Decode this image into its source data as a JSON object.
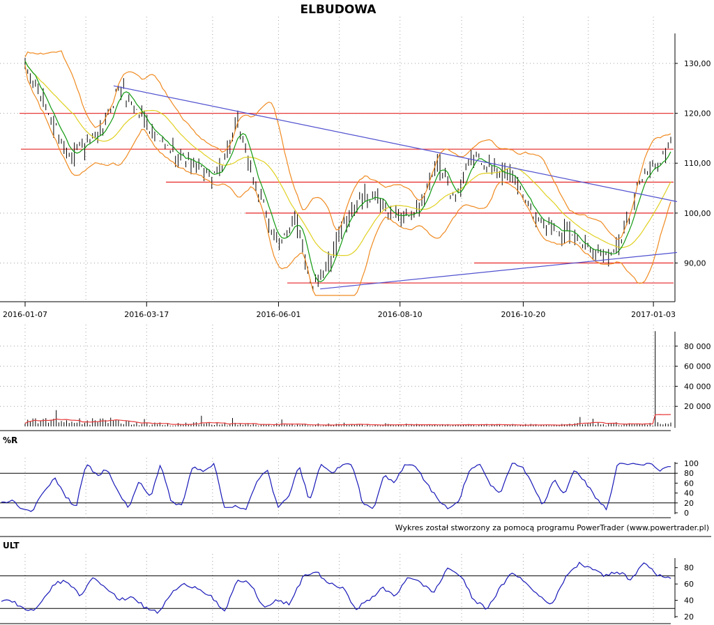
{
  "colors": {
    "background": "#ffffff",
    "candles": "#000000",
    "bollinger": "#f08a20",
    "sma_fast": "#109a10",
    "sma_slow": "#e0d020",
    "support_resistance": "#e83838",
    "trendline": "#5050d0",
    "volume_avg": "#e83838",
    "oscillator": "#1818b8",
    "grid": "#a0a0a0"
  },
  "chart_data": [
    {
      "type": "candlestick",
      "title": "ELBUDOWA",
      "x_tick_labels": [
        "2016-01-07",
        "2016-03-17",
        "2016-06-01",
        "2016-08-10",
        "2016-10-20",
        "2017-01-03"
      ],
      "y_tick_labels": [
        "90,00",
        "100,00",
        "110,00",
        "120,00",
        "130,00"
      ],
      "ylim": [
        83.5,
        136
      ],
      "y_scale": "linear",
      "grid": "dotted",
      "close_anchors": {
        "x": [
          "2016-01-07",
          "2016-02-01",
          "2016-02-20",
          "2016-03-01",
          "2016-03-25",
          "2016-04-12",
          "2016-04-25",
          "2016-05-09",
          "2016-05-20",
          "2016-06-01",
          "2016-06-10",
          "2016-06-20",
          "2016-06-30",
          "2016-07-12",
          "2016-07-25",
          "2016-08-05",
          "2016-08-20",
          "2016-09-01",
          "2016-09-10",
          "2016-09-22",
          "2016-10-03",
          "2016-10-14",
          "2016-10-26",
          "2016-11-10",
          "2016-11-25",
          "2016-12-10",
          "2016-12-19",
          "2016-12-25",
          "2017-01-05",
          "2017-01-13"
        ],
        "close": [
          129.5,
          112,
          115.5,
          125.5,
          114,
          110,
          107,
          117,
          104.5,
          93,
          99.5,
          85.5,
          89.5,
          101,
          103.5,
          99.5,
          100,
          110,
          103,
          111.5,
          109,
          107,
          99.5,
          97,
          93.5,
          91.5,
          98,
          106,
          110,
          113.5
        ]
      },
      "overlays": [
        "Bollinger bands",
        "moving average (short)",
        "moving average (long)"
      ],
      "horizontal_lines": [
        120,
        112.8,
        106.2,
        100,
        90,
        86
      ],
      "trendlines": [
        {
          "from": [
            "2016-02-27",
            125.5
          ],
          "to": [
            "2017-01-15",
            102.3
          ]
        },
        {
          "from": [
            "2016-06-25",
            84.8
          ],
          "to": [
            "2017-01-15",
            92.1
          ]
        }
      ]
    },
    {
      "type": "bar",
      "name": "volume",
      "y_tick_labels": [
        "20 000",
        "40 000",
        "60 000",
        "80 000"
      ],
      "ylim": [
        0,
        100000
      ],
      "typical_values": [
        5000,
        2500,
        2000,
        1500,
        1500,
        2500
      ],
      "spike": {
        "x": "2017-01-04",
        "value": 95000
      },
      "avg_line": true
    },
    {
      "type": "line",
      "title": "%R",
      "y_tick_labels": [
        "0",
        "20",
        "40",
        "60",
        "80",
        "100"
      ],
      "ylim": [
        0,
        100
      ],
      "levels": [
        20,
        80
      ],
      "values": [
        20,
        25,
        8,
        5,
        45,
        70,
        35,
        10,
        100,
        75,
        90,
        40,
        10,
        65,
        30,
        100,
        20,
        15,
        95,
        85,
        100,
        10,
        15,
        5,
        60,
        90,
        10,
        30,
        100,
        20,
        100,
        80,
        95,
        100,
        20,
        5,
        75,
        60,
        100,
        95,
        60,
        30,
        10,
        20,
        85,
        100,
        55,
        40,
        100,
        95,
        55,
        15,
        70,
        35,
        90,
        60,
        30,
        5,
        100,
        100,
        95,
        100,
        85,
        95
      ]
    },
    {
      "type": "line",
      "title": "ULT",
      "y_tick_labels": [
        "20",
        "40",
        "60",
        "80"
      ],
      "ylim": [
        20,
        90
      ],
      "levels": [
        30,
        70
      ],
      "values": [
        40,
        38,
        25,
        35,
        60,
        65,
        45,
        70,
        55,
        40,
        45,
        30,
        25,
        50,
        60,
        55,
        45,
        25,
        65,
        60,
        30,
        40,
        35,
        70,
        75,
        60,
        55,
        30,
        40,
        55,
        45,
        70,
        60,
        50,
        80,
        70,
        40,
        30,
        55,
        75,
        60,
        45,
        35,
        70,
        85,
        80,
        70,
        75,
        65,
        88,
        70,
        68
      ]
    }
  ],
  "footer": {
    "credit": "Wykres został stworzony za pomocą programu PowerTrader (www.powertrader.pl)"
  }
}
